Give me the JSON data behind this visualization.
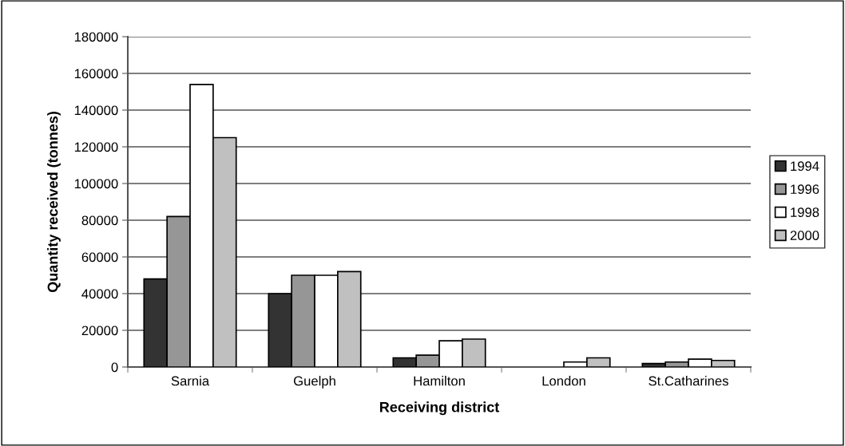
{
  "chart_data": {
    "type": "bar",
    "xlabel": "Receiving district",
    "ylabel": "Quantity received (tonnes)",
    "categories": [
      "Sarnia",
      "Guelph",
      "Hamilton",
      "London",
      "St.Catharines"
    ],
    "series": [
      {
        "name": "1994",
        "color": "#333333",
        "values": [
          48000,
          40000,
          5000,
          null,
          1900
        ]
      },
      {
        "name": "1996",
        "color": "#969696",
        "values": [
          82000,
          50000,
          6500,
          null,
          2700
        ]
      },
      {
        "name": "1998",
        "color": "#ffffff",
        "values": [
          154000,
          50000,
          14300,
          2700,
          4300
        ]
      },
      {
        "name": "2000",
        "color": "#c0c0c0",
        "values": [
          125000,
          52000,
          15200,
          5000,
          3600
        ]
      }
    ],
    "ylim": [
      0,
      180000
    ],
    "yticks": [
      0,
      20000,
      40000,
      60000,
      80000,
      100000,
      120000,
      140000,
      160000,
      180000
    ],
    "grid": "y",
    "legend": "right"
  }
}
